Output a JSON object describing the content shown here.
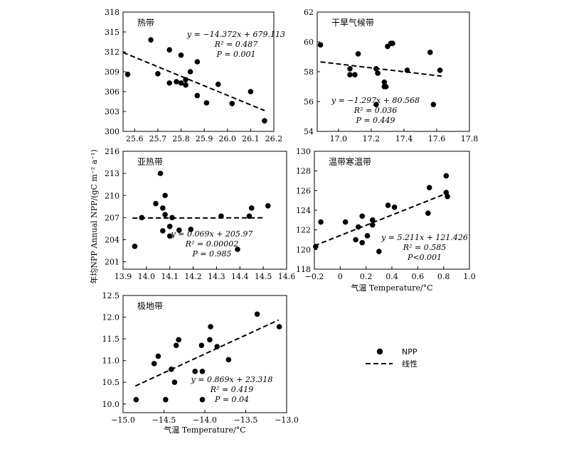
{
  "y_axis_label": "年均NPP Annual NPP/(gC m⁻² a⁻¹)",
  "legend": {
    "points_label": "NPP",
    "line_label": "线性"
  },
  "chart_data": [
    {
      "id": "tropical",
      "type": "scatter",
      "title": "热带",
      "xlabel": "",
      "xlim": [
        25.55,
        26.2
      ],
      "ylim": [
        300,
        318
      ],
      "xticks": [
        "25.6",
        "25.7",
        "25.8",
        "25.9",
        "26.0",
        "26.1",
        "26.2"
      ],
      "yticks": [
        "300",
        "303",
        "306",
        "309",
        "312",
        "315",
        "318"
      ],
      "annotation": [
        "y = −14.372x + 679.113",
        "R² = 0.487",
        "P = 0.001"
      ],
      "fit": {
        "slope": -14.372,
        "intercept": 679.113,
        "x_range": [
          25.55,
          26.16
        ]
      },
      "points": [
        [
          25.57,
          308.6
        ],
        [
          25.67,
          313.8
        ],
        [
          25.7,
          308.7
        ],
        [
          25.75,
          312.3
        ],
        [
          25.75,
          307.3
        ],
        [
          25.78,
          307.5
        ],
        [
          25.8,
          311.5
        ],
        [
          25.8,
          307.3
        ],
        [
          25.82,
          307.0
        ],
        [
          25.82,
          307.8
        ],
        [
          25.84,
          309.0
        ],
        [
          25.87,
          310.5
        ],
        [
          25.87,
          305.4
        ],
        [
          25.91,
          304.3
        ],
        [
          25.96,
          307.1
        ],
        [
          26.02,
          304.2
        ],
        [
          26.1,
          306.0
        ],
        [
          26.16,
          301.6
        ]
      ]
    },
    {
      "id": "arid",
      "type": "scatter",
      "title": "干旱气候带",
      "xlabel": "",
      "xlim": [
        16.87,
        17.8
      ],
      "ylim": [
        54,
        62
      ],
      "xticks": [
        "17.0",
        "17.2",
        "17.4",
        "17.6",
        "17.8"
      ],
      "yticks": [
        "54",
        "56",
        "58",
        "60",
        "62"
      ],
      "annotation": [
        "y = −1.297x + 80.568",
        "R² = 0.036",
        "P = 0.449"
      ],
      "fit": {
        "slope": -1.297,
        "intercept": 80.568,
        "x_range": [
          16.89,
          17.63
        ]
      },
      "points": [
        [
          16.89,
          59.8
        ],
        [
          17.07,
          58.2
        ],
        [
          17.07,
          57.8
        ],
        [
          17.1,
          57.8
        ],
        [
          17.12,
          59.2
        ],
        [
          17.23,
          58.2
        ],
        [
          17.23,
          55.8
        ],
        [
          17.24,
          57.9
        ],
        [
          17.28,
          57.0
        ],
        [
          17.28,
          57.3
        ],
        [
          17.29,
          57.0
        ],
        [
          17.3,
          59.7
        ],
        [
          17.32,
          59.9
        ],
        [
          17.33,
          59.9
        ],
        [
          17.42,
          58.1
        ],
        [
          17.56,
          59.3
        ],
        [
          17.58,
          55.8
        ],
        [
          17.62,
          58.1
        ]
      ]
    },
    {
      "id": "subtropical",
      "type": "scatter",
      "title": "亚热带",
      "xlabel": "",
      "xlim": [
        13.9,
        14.6
      ],
      "ylim": [
        200,
        216
      ],
      "xticks": [
        "13.9",
        "14.0",
        "14.1",
        "14.2",
        "14.3",
        "14.4",
        "14.5",
        "14.6"
      ],
      "yticks": [
        "201",
        "204",
        "207",
        "210",
        "213",
        "216"
      ],
      "annotation": [
        "y = 0.069x + 205.97",
        "R² = 0.00002",
        "P = 0.985"
      ],
      "fit": {
        "slope": 0.069,
        "intercept": 205.97,
        "x_range": [
          13.94,
          14.5
        ]
      },
      "points": [
        [
          13.95,
          203.1
        ],
        [
          13.98,
          207.0
        ],
        [
          14.04,
          208.9
        ],
        [
          14.06,
          213.0
        ],
        [
          14.07,
          208.3
        ],
        [
          14.07,
          205.2
        ],
        [
          14.08,
          210.0
        ],
        [
          14.08,
          207.4
        ],
        [
          14.1,
          204.5
        ],
        [
          14.1,
          205.8
        ],
        [
          14.11,
          207.0
        ],
        [
          14.14,
          205.3
        ],
        [
          14.19,
          205.4
        ],
        [
          14.32,
          207.2
        ],
        [
          14.39,
          202.7
        ],
        [
          14.44,
          207.2
        ],
        [
          14.45,
          208.3
        ],
        [
          14.52,
          208.6
        ]
      ]
    },
    {
      "id": "temperate",
      "type": "scatter",
      "title": "温带寒温带",
      "xlabel": "气温 Temperature/°C",
      "xlim": [
        -0.2,
        1.0
      ],
      "ylim": [
        118,
        130
      ],
      "xticks": [
        "−0.2",
        "0",
        "0.2",
        "0.4",
        "0.6",
        "0.8",
        "1.0"
      ],
      "yticks": [
        "118",
        "120",
        "122",
        "124",
        "126",
        "128",
        "130"
      ],
      "annotation": [
        "y = 5.211x + 121.426",
        "R² = 0.585",
        "P<0.001"
      ],
      "fit": {
        "slope": 5.211,
        "intercept": 121.426,
        "x_range": [
          -0.2,
          0.83
        ]
      },
      "points": [
        [
          -0.19,
          120.3
        ],
        [
          -0.15,
          122.8
        ],
        [
          0.04,
          122.8
        ],
        [
          0.12,
          121.0
        ],
        [
          0.14,
          122.3
        ],
        [
          0.17,
          120.7
        ],
        [
          0.17,
          123.4
        ],
        [
          0.21,
          121.4
        ],
        [
          0.25,
          122.5
        ],
        [
          0.25,
          123.0
        ],
        [
          0.3,
          119.8
        ],
        [
          0.37,
          124.5
        ],
        [
          0.42,
          124.3
        ],
        [
          0.68,
          123.7
        ],
        [
          0.69,
          126.3
        ],
        [
          0.82,
          127.5
        ],
        [
          0.82,
          125.8
        ],
        [
          0.83,
          125.4
        ]
      ]
    },
    {
      "id": "polar",
      "type": "scatter",
      "title": "极地带",
      "xlabel": "气温 Temperature/°C",
      "xlim": [
        -15.0,
        -13.0
      ],
      "ylim": [
        9.8,
        12.5
      ],
      "xticks": [
        "−15.0",
        "−14.5",
        "−14.0",
        "−13.5",
        "−13.0"
      ],
      "yticks": [
        "10.0",
        "10.5",
        "11.0",
        "11.5",
        "12.0",
        "12.5"
      ],
      "annotation": [
        "y = 0.869x + 23.318",
        "R² = 0.419",
        "P = 0.04"
      ],
      "fit": {
        "slope": 0.869,
        "intercept": 23.318,
        "x_range": [
          -14.85,
          -13.1
        ]
      },
      "points": [
        [
          -14.84,
          10.1
        ],
        [
          -14.62,
          10.93
        ],
        [
          -14.57,
          11.1
        ],
        [
          -14.48,
          10.1
        ],
        [
          -14.41,
          10.8
        ],
        [
          -14.37,
          10.5
        ],
        [
          -14.35,
          11.35
        ],
        [
          -14.32,
          11.48
        ],
        [
          -14.12,
          10.75
        ],
        [
          -14.04,
          11.35
        ],
        [
          -14.03,
          10.1
        ],
        [
          -14.03,
          10.75
        ],
        [
          -13.94,
          11.48
        ],
        [
          -13.93,
          11.78
        ],
        [
          -13.85,
          11.32
        ],
        [
          -13.71,
          11.02
        ],
        [
          -13.36,
          12.07
        ],
        [
          -13.09,
          11.78
        ]
      ]
    }
  ]
}
